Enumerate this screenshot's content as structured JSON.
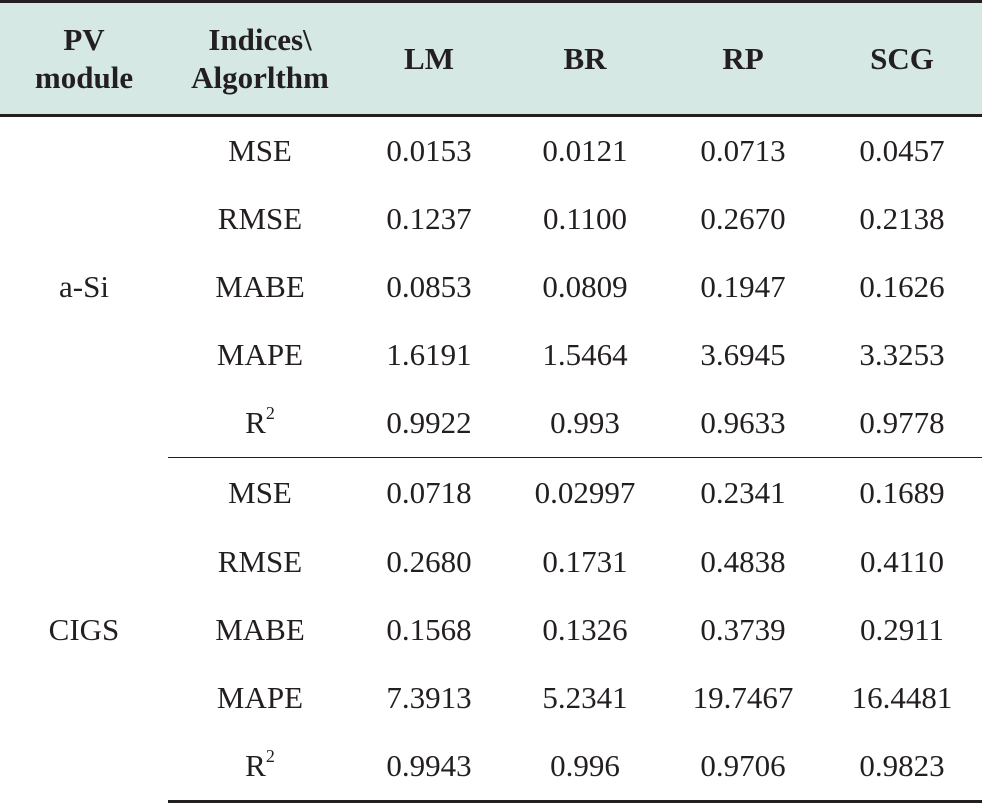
{
  "table": {
    "headers": [
      "PV\nmodule",
      "Indices\\\nAlgorlthm",
      "LM",
      "BR",
      "RP",
      "SCG"
    ],
    "header_lines": [
      [
        "PV",
        "module"
      ],
      [
        "Indices\\",
        "Algorlthm"
      ],
      [
        "LM"
      ],
      [
        "BR"
      ],
      [
        "RP"
      ],
      [
        "SCG"
      ]
    ],
    "header_bg": "#d5e8e4",
    "groups": [
      {
        "module": "a-Si",
        "rows": [
          {
            "index": "MSE",
            "sup": "",
            "values": [
              "0.0153",
              "0.0121",
              "0.0713",
              "0.0457"
            ]
          },
          {
            "index": "RMSE",
            "sup": "",
            "values": [
              "0.1237",
              "0.1100",
              "0.2670",
              "0.2138"
            ]
          },
          {
            "index": "MABE",
            "sup": "",
            "values": [
              "0.0853",
              "0.0809",
              "0.1947",
              "0.1626"
            ]
          },
          {
            "index": "MAPE",
            "sup": "",
            "values": [
              "1.6191",
              "1.5464",
              "3.6945",
              "3.3253"
            ]
          },
          {
            "index": "R",
            "sup": "2",
            "values": [
              "0.9922",
              "0.993",
              "0.9633",
              "0.9778"
            ]
          }
        ]
      },
      {
        "module": "CIGS",
        "rows": [
          {
            "index": "MSE",
            "sup": "",
            "values": [
              "0.0718",
              "0.02997",
              "0.2341",
              "0.1689"
            ]
          },
          {
            "index": "RMSE",
            "sup": "",
            "values": [
              "0.2680",
              "0.1731",
              "0.4838",
              "0.4110"
            ]
          },
          {
            "index": "MABE",
            "sup": "",
            "values": [
              "0.1568",
              "0.1326",
              "0.3739",
              "0.2911"
            ]
          },
          {
            "index": "MAPE",
            "sup": "",
            "values": [
              "7.3913",
              "5.2341",
              "19.7467",
              "16.4481"
            ]
          },
          {
            "index": "R",
            "sup": "2",
            "values": [
              "0.9943",
              "0.996",
              "0.9706",
              "0.9823"
            ]
          }
        ]
      }
    ]
  }
}
